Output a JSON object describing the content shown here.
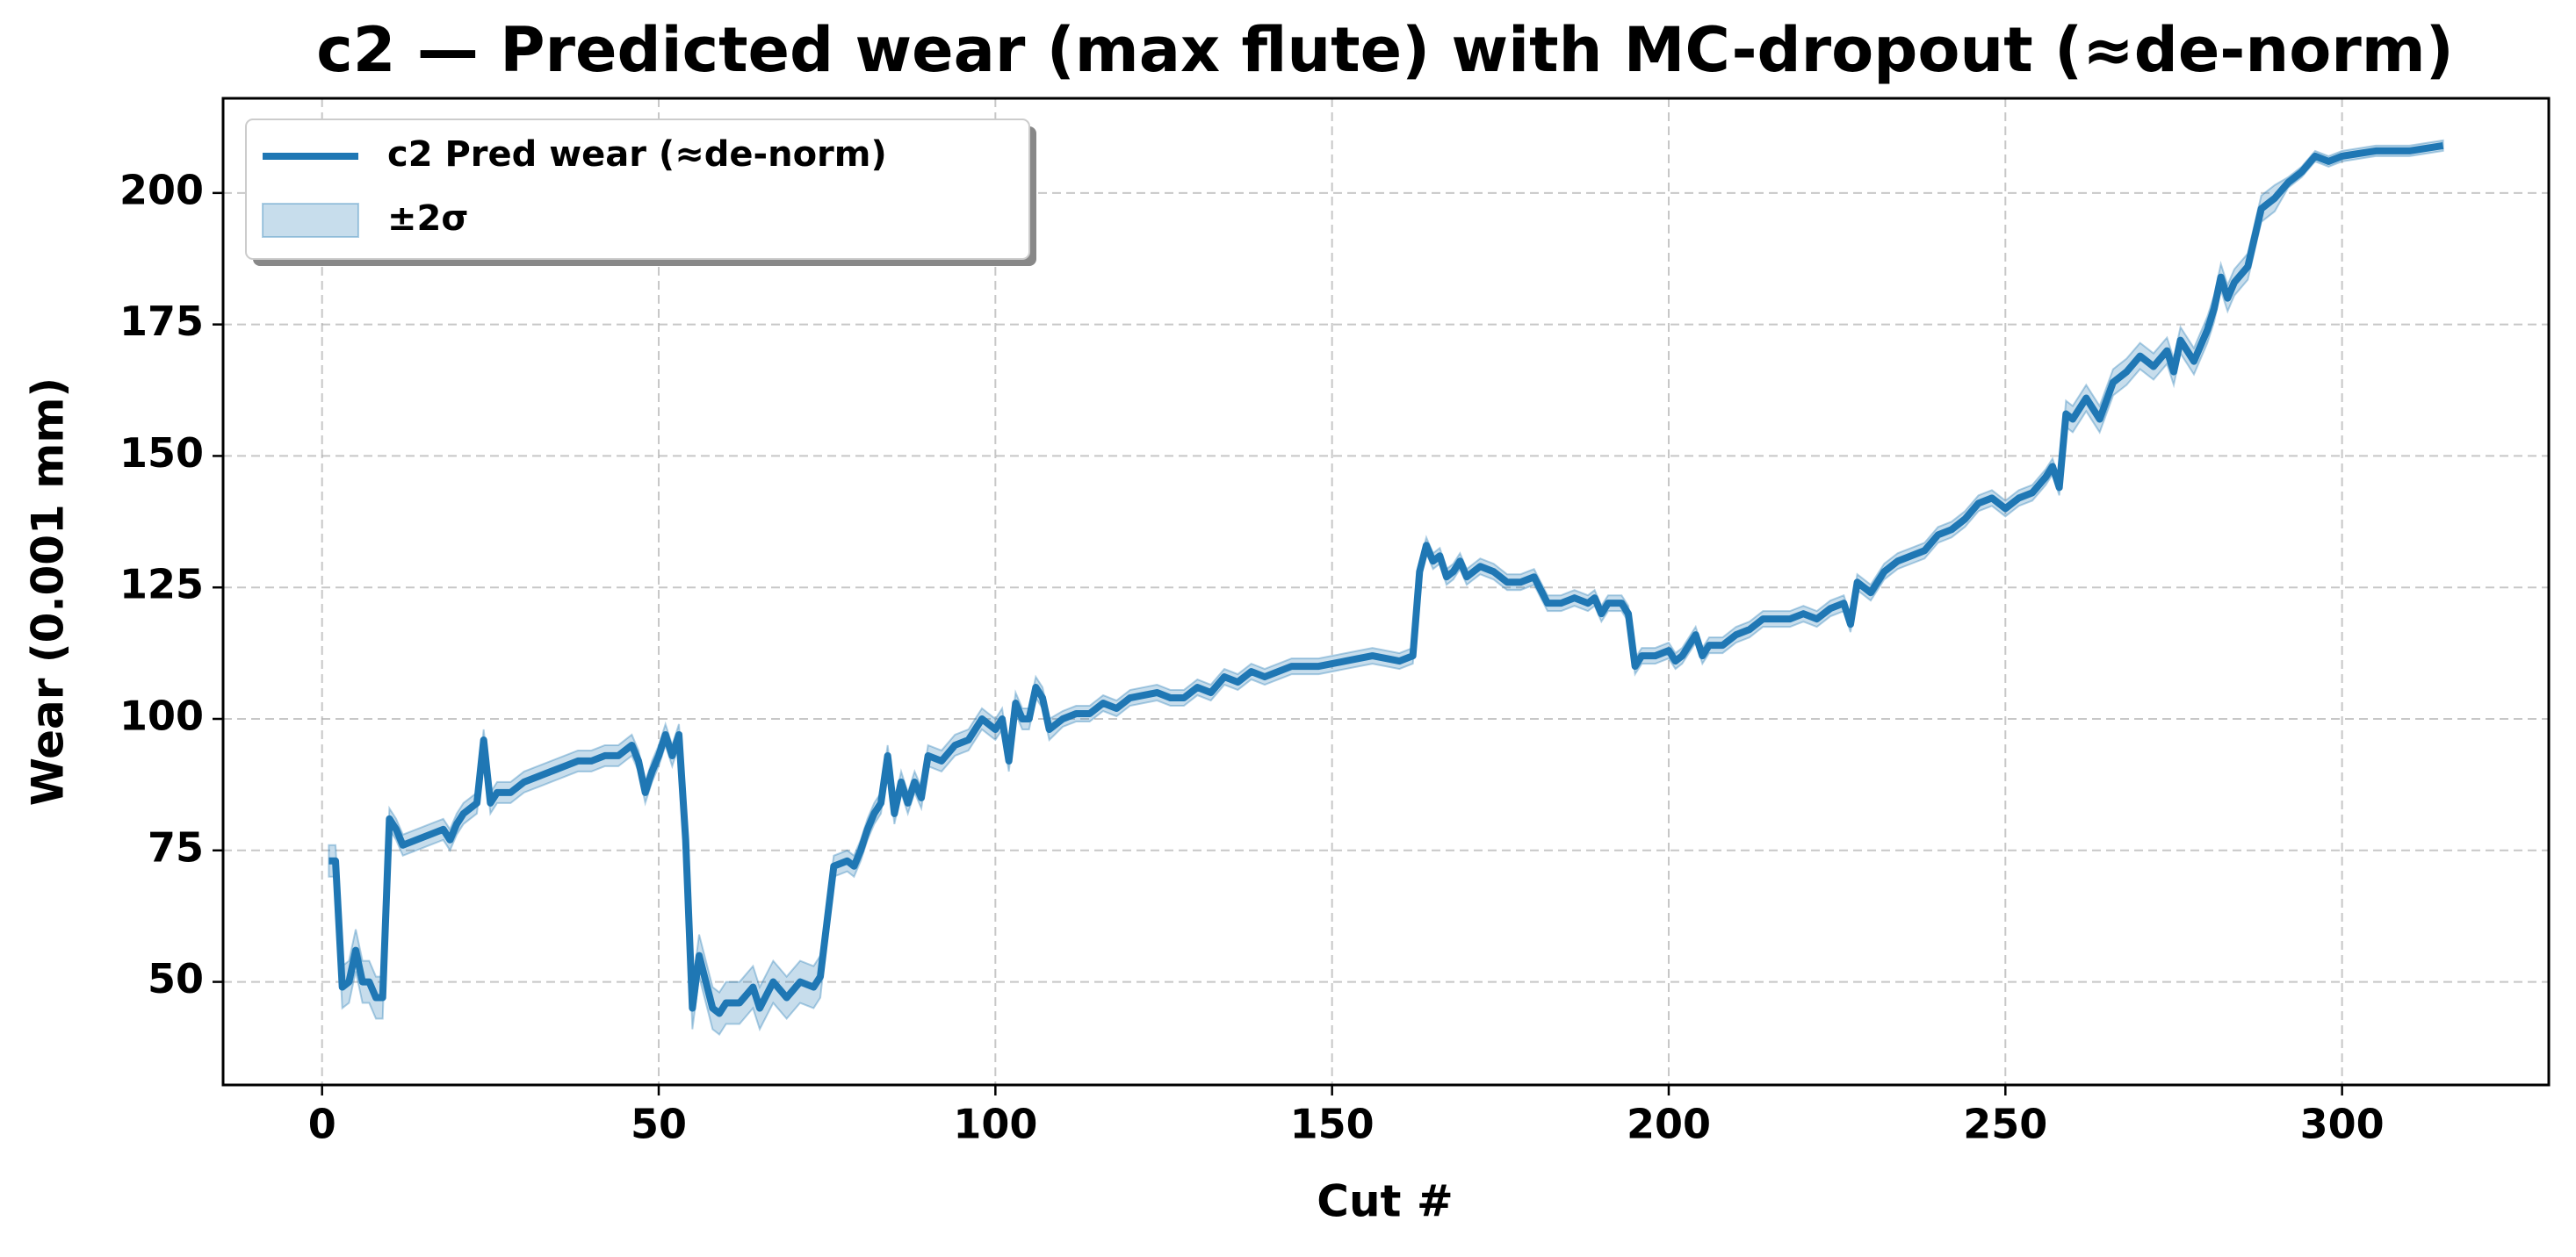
{
  "chart_data": {
    "type": "line",
    "title": "c2 — Predicted wear (max flute) with MC-dropout (≈de-norm)",
    "x_label": "Cut #",
    "y_label": "Wear (0.001 mm)",
    "x": [
      1,
      2,
      3,
      4,
      5,
      6,
      7,
      8,
      9,
      10,
      11,
      12,
      14,
      16,
      18,
      19,
      20,
      21,
      22,
      23,
      24,
      25,
      26,
      28,
      30,
      32,
      34,
      36,
      38,
      40,
      42,
      44,
      46,
      47,
      48,
      49,
      50,
      51,
      52,
      53,
      54,
      55,
      56,
      57,
      58,
      59,
      60,
      62,
      64,
      65,
      67,
      69,
      71,
      73,
      74,
      76,
      78,
      79,
      80,
      81,
      82,
      83,
      84,
      85,
      86,
      87,
      88,
      89,
      90,
      92,
      94,
      96,
      98,
      99,
      100,
      101,
      102,
      103,
      104,
      105,
      106,
      107,
      108,
      110,
      112,
      114,
      116,
      118,
      120,
      124,
      126,
      128,
      130,
      132,
      134,
      136,
      138,
      140,
      144,
      148,
      152,
      156,
      160,
      162,
      163,
      164,
      165,
      166,
      167,
      168,
      169,
      170,
      172,
      174,
      176,
      178,
      180,
      182,
      184,
      186,
      188,
      189,
      190,
      191,
      193,
      194,
      195,
      196,
      198,
      200,
      201,
      202,
      203,
      204,
      205,
      206,
      208,
      210,
      212,
      214,
      216,
      218,
      220,
      222,
      224,
      226,
      227,
      228,
      230,
      232,
      234,
      236,
      238,
      240,
      242,
      244,
      246,
      248,
      250,
      252,
      254,
      256,
      257,
      258,
      259,
      260,
      262,
      264,
      266,
      268,
      270,
      272,
      274,
      275,
      276,
      278,
      280,
      281,
      282,
      283,
      284,
      286,
      288,
      290,
      292,
      294,
      296,
      298,
      300,
      305,
      310,
      315
    ],
    "series": [
      {
        "name": "c2 Pred wear (≈de-norm)",
        "color": "#1f77b4",
        "values": [
          73,
          73,
          49,
          50,
          56,
          50,
          50,
          47,
          47,
          81,
          79,
          76,
          77,
          78,
          79,
          77,
          80,
          82,
          83,
          84,
          96,
          84,
          86,
          86,
          88,
          89,
          90,
          91,
          92,
          92,
          93,
          93,
          95,
          92,
          86,
          90,
          93,
          97,
          93,
          97,
          77,
          45,
          55,
          50,
          45,
          44,
          46,
          46,
          49,
          45,
          50,
          47,
          50,
          49,
          51,
          72,
          73,
          72,
          75,
          79,
          82,
          84,
          93,
          82,
          88,
          84,
          88,
          85,
          93,
          92,
          95,
          96,
          100,
          99,
          98,
          100,
          92,
          103,
          100,
          100,
          106,
          104,
          98,
          100,
          101,
          101,
          103,
          102,
          104,
          105,
          104,
          104,
          106,
          105,
          108,
          107,
          109,
          108,
          110,
          110,
          111,
          112,
          111,
          112,
          128,
          133,
          130,
          131,
          127,
          128,
          130,
          127,
          129,
          128,
          126,
          126,
          127,
          122,
          122,
          123,
          122,
          123,
          120,
          122,
          122,
          120,
          110,
          112,
          112,
          113,
          111,
          112,
          114,
          116,
          112,
          114,
          114,
          116,
          117,
          119,
          119,
          119,
          120,
          119,
          121,
          122,
          118,
          126,
          124,
          128,
          130,
          131,
          132,
          135,
          136,
          138,
          141,
          142,
          140,
          142,
          143,
          146,
          148,
          144,
          158,
          157,
          161,
          157,
          164,
          166,
          169,
          167,
          170,
          166,
          172,
          168,
          174,
          178,
          184,
          180,
          183,
          186,
          197,
          199,
          202,
          204,
          207,
          206,
          207,
          208,
          208,
          209
        ]
      },
      {
        "name": "±2σ",
        "color": "#1f77b4",
        "opacity": 0.25,
        "error": [
          3,
          3,
          4,
          4,
          4,
          4,
          4,
          4,
          4,
          2,
          2,
          2,
          2,
          2,
          2,
          2,
          2,
          2,
          2,
          2,
          2,
          2,
          2,
          2,
          2,
          2,
          2,
          2,
          2,
          2,
          2,
          2,
          2,
          2,
          2,
          2,
          2,
          2,
          2,
          2,
          4,
          4,
          4,
          4,
          4,
          4,
          4,
          4,
          4,
          4,
          4,
          4,
          4,
          4,
          4,
          2,
          2,
          2,
          2,
          2,
          2,
          2,
          2,
          2,
          2,
          2,
          2,
          2,
          2,
          2,
          2,
          2,
          2,
          2,
          2,
          2,
          2,
          2,
          2,
          2,
          2,
          2,
          2,
          1.5,
          1.5,
          1.5,
          1.5,
          1.5,
          1.5,
          1.5,
          1.5,
          1.5,
          1.5,
          1.5,
          1.5,
          1.5,
          1.5,
          1.5,
          1.5,
          1.5,
          1.5,
          1.5,
          1.5,
          1.5,
          1.5,
          1.5,
          1.5,
          1.5,
          1.5,
          1.5,
          1.5,
          1.5,
          1.5,
          1.5,
          1.5,
          1.5,
          1.5,
          1.5,
          1.5,
          1.5,
          1.5,
          1.5,
          1.5,
          1.5,
          1.5,
          1.5,
          1.5,
          1.5,
          1.5,
          1.5,
          1.5,
          1.5,
          1.5,
          1.5,
          1.5,
          1.5,
          1.5,
          1.5,
          1.5,
          1.5,
          1.5,
          1.5,
          1.5,
          1.5,
          1.5,
          1.5,
          1.5,
          1.5,
          1.5,
          1.5,
          1.5,
          1.5,
          1.5,
          1.5,
          1.5,
          1.5,
          1.5,
          1.5,
          1.5,
          1.5,
          1.5,
          1.5,
          1.5,
          1.5,
          2.5,
          2.5,
          2.5,
          2.5,
          2.5,
          2.5,
          2.5,
          2.5,
          2.5,
          2.5,
          2.5,
          2.5,
          2.5,
          2.5,
          2.5,
          2.5,
          2.5,
          2.5,
          2.5,
          2.5,
          1,
          1,
          1,
          1,
          1,
          1,
          1,
          1
        ]
      }
    ],
    "xlim": [
      -14.7,
      330.7
    ],
    "xticks": [
      0,
      50,
      100,
      150,
      200,
      250,
      300
    ],
    "ylim": [
      30.4,
      218
    ],
    "yticks": [
      50,
      75,
      100,
      125,
      150,
      175,
      200
    ],
    "grid": true,
    "legend": "upper left"
  }
}
